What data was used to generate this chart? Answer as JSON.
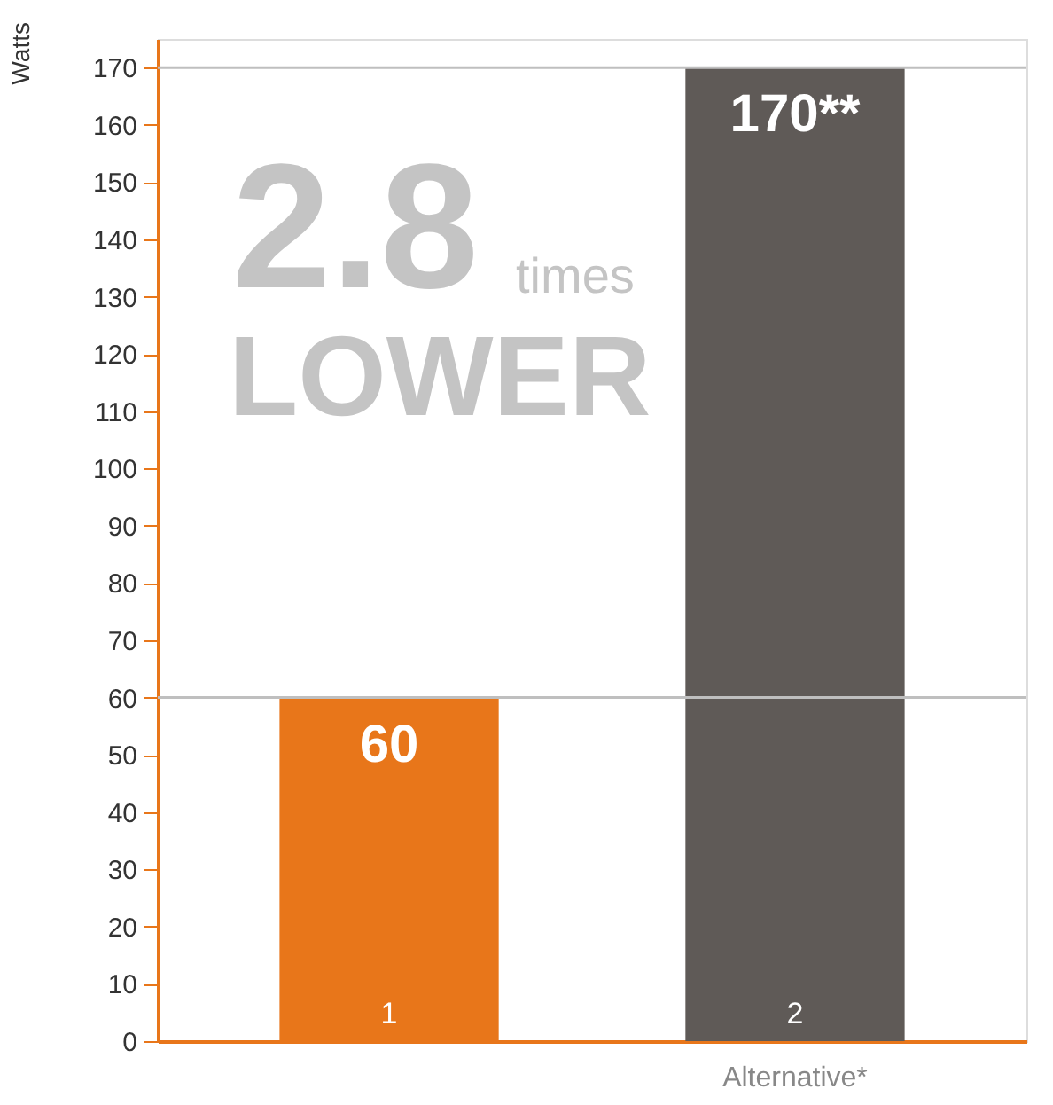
{
  "chart_data": {
    "type": "bar",
    "ylabel": "Watts",
    "categories": [
      null,
      "Alternative*"
    ],
    "values": [
      60,
      170
    ],
    "colors": [
      "#e8761a",
      "#5f5a57"
    ],
    "value_labels": [
      "60",
      "170**"
    ],
    "ylim": [
      0,
      175
    ],
    "yticks": [
      0,
      10,
      20,
      30,
      40,
      50,
      60,
      70,
      80,
      90,
      100,
      110,
      120,
      130,
      140,
      150,
      160,
      170
    ],
    "grid": false,
    "ref_lines": [
      {
        "axis": "y",
        "value": 60,
        "color": "#bfbfbf"
      },
      {
        "axis": "y",
        "value": 170,
        "color": "#bfbfbf"
      }
    ],
    "annotations": [
      "2.8",
      "times",
      "LOWER",
      {
        "text": "1",
        "y": 0
      },
      {
        "text": "2",
        "x": "Alternative*",
        "y": 0
      }
    ]
  }
}
